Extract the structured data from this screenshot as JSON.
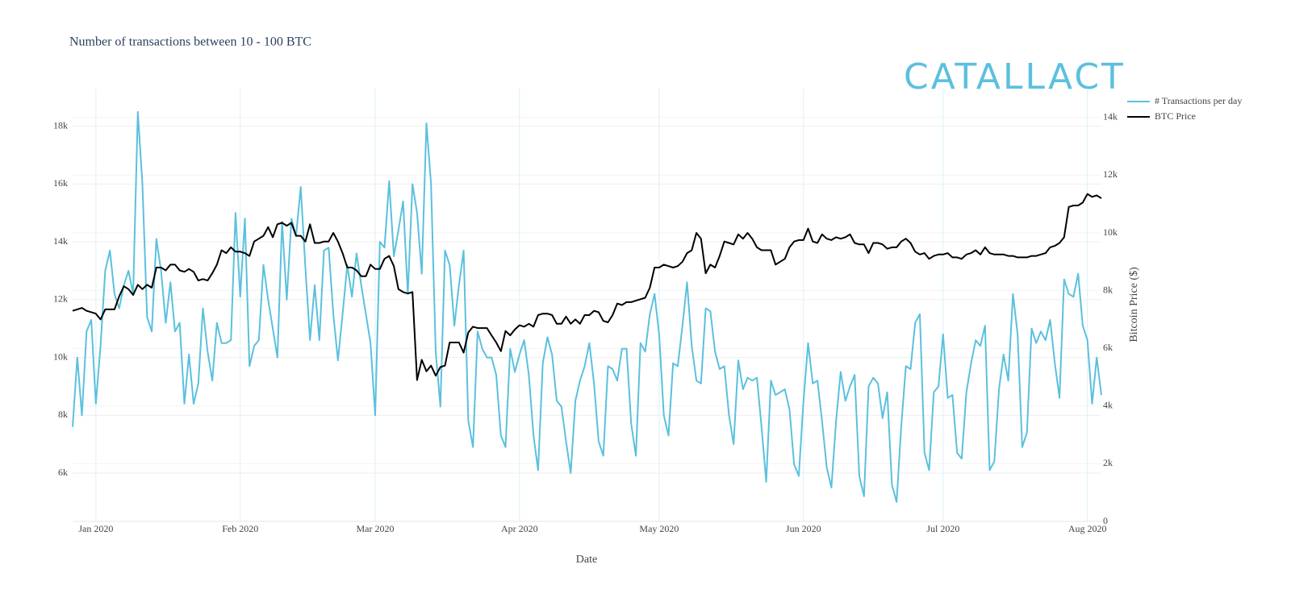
{
  "chart_data": {
    "type": "line",
    "title": "Number of transactions between 10 - 100 BTC",
    "logo": "CATALLACT",
    "xlabel": "Date",
    "y2label": "Bitcoin Price ($)",
    "categories": [
      null,
      null,
      null,
      null,
      null,
      "Jan 2020",
      null,
      null,
      null,
      null,
      null,
      null,
      null,
      null,
      null,
      null,
      null,
      null,
      null,
      null,
      null,
      null,
      null,
      null,
      null,
      null,
      null,
      null,
      null,
      null,
      null,
      null,
      null,
      null,
      null,
      null,
      "Feb 2020",
      null,
      null,
      null,
      null,
      null,
      null,
      null,
      null,
      null,
      null,
      null,
      null,
      null,
      null,
      null,
      null,
      null,
      null,
      null,
      null,
      null,
      null,
      null,
      null,
      null,
      null,
      null,
      null,
      "Mar 2020",
      null,
      null,
      null,
      null,
      null,
      null,
      null,
      null,
      null,
      null,
      null,
      null,
      null,
      null,
      null,
      null,
      null,
      null,
      null,
      null,
      null,
      null,
      null,
      null,
      null,
      null,
      null,
      null,
      null,
      null,
      "Apr 2020",
      null,
      null,
      null,
      null,
      null,
      null,
      null,
      null,
      null,
      null,
      null,
      null,
      null,
      null,
      null,
      null,
      null,
      null,
      null,
      null,
      null,
      null,
      null,
      null,
      null,
      null,
      null,
      null,
      null,
      "May 2020",
      null,
      null,
      null,
      null,
      null,
      null,
      null,
      null,
      null,
      null,
      null,
      null,
      null,
      null,
      null,
      null,
      null,
      null,
      null,
      null,
      null,
      null,
      null,
      null,
      null,
      null,
      null,
      null,
      null,
      null,
      "Jun 2020",
      null,
      null,
      null,
      null,
      null,
      null,
      null,
      null,
      null,
      null,
      null,
      null,
      null,
      null,
      null,
      null,
      null,
      null,
      null,
      null,
      null,
      null,
      null,
      null,
      null,
      null,
      null,
      null,
      null,
      "Jul 2020",
      null,
      null,
      null,
      null,
      null,
      null,
      null,
      null,
      null,
      null,
      null,
      null,
      null,
      null,
      null,
      null,
      null,
      null,
      null,
      null,
      null,
      null,
      null,
      null,
      null,
      null,
      null,
      null,
      null,
      null,
      "Aug 2020",
      null,
      null,
      null
    ],
    "series": [
      {
        "name": "# Transactions per day",
        "color": "#5bc0de",
        "axis": "y",
        "values": [
          7600,
          10000,
          8000,
          10900,
          11300,
          8400,
          10400,
          13000,
          13700,
          12200,
          11700,
          12500,
          13000,
          12200,
          18500,
          16000,
          11400,
          10900,
          14100,
          13000,
          11200,
          12600,
          10900,
          11200,
          8400,
          10100,
          8400,
          9100,
          11700,
          10200,
          9200,
          11200,
          10500,
          10500,
          10600,
          15000,
          12100,
          14800,
          9700,
          10400,
          10600,
          13200,
          12000,
          11000,
          10000,
          14700,
          12000,
          14800,
          14200,
          15900,
          13100,
          10600,
          12500,
          10600,
          13700,
          13800,
          11500,
          9900,
          11500,
          13200,
          12100,
          13600,
          12500,
          11500,
          10500,
          8000,
          14000,
          13800,
          16100,
          13500,
          14400,
          15400,
          12200,
          16000,
          15000,
          12900,
          18100,
          16000,
          10200,
          8300,
          13700,
          13200,
          11100,
          12500,
          13700,
          7800,
          6900,
          10900,
          10300,
          10000,
          10000,
          9400,
          7300,
          6900,
          10300,
          9500,
          10100,
          10600,
          9400,
          7300,
          6100,
          9800,
          10700,
          10100,
          8500,
          8300,
          7100,
          6000,
          8500,
          9200,
          9700,
          10500,
          9100,
          7100,
          6600,
          9700,
          9600,
          9200,
          10300,
          10300,
          7700,
          6600,
          10500,
          10200,
          11500,
          12200,
          10800,
          8000,
          7300,
          9800,
          9700,
          11100,
          12600,
          10400,
          9200,
          9100,
          11700,
          11600,
          10200,
          9600,
          9700,
          8000,
          7000,
          9900,
          8900,
          9300,
          9200,
          9300,
          7600,
          5700,
          9200,
          8700,
          8800,
          8900,
          8200,
          6300,
          5900,
          8500,
          10500,
          9100,
          9200,
          7800,
          6200,
          5500,
          7800,
          9500,
          8500,
          9000,
          9400,
          5900,
          5200,
          9000,
          9300,
          9100,
          7900,
          8800,
          5600,
          5000,
          7600,
          9700,
          9600,
          11200,
          11500,
          6700,
          6100,
          8800,
          9000,
          10800,
          8600,
          8700,
          6700,
          6500,
          8800,
          9800,
          10600,
          10400,
          11100,
          6100,
          6400,
          8900,
          10100,
          9200,
          12200,
          10800,
          6900,
          7400,
          11000,
          10500,
          10900,
          10600,
          11300,
          9800,
          8600,
          12700,
          12200,
          12100,
          12900,
          11100,
          10600,
          8400,
          10000,
          8700
        ]
      },
      {
        "name": "BTC Price",
        "color": "#000000",
        "axis": "y2",
        "values": [
          7300,
          7350,
          7400,
          7300,
          7250,
          7200,
          7000,
          7350,
          7350,
          7350,
          7800,
          8150,
          8050,
          7850,
          8200,
          8050,
          8200,
          8100,
          8800,
          8800,
          8700,
          8900,
          8900,
          8700,
          8650,
          8750,
          8650,
          8350,
          8400,
          8350,
          8600,
          8900,
          9400,
          9300,
          9500,
          9350,
          9350,
          9300,
          9200,
          9700,
          9800,
          9900,
          10200,
          9850,
          10300,
          10350,
          10250,
          10350,
          9900,
          9900,
          9700,
          10300,
          9650,
          9650,
          9700,
          9700,
          10000,
          9700,
          9300,
          8800,
          8800,
          8700,
          8500,
          8500,
          8900,
          8750,
          8750,
          9100,
          9200,
          8850,
          8050,
          7950,
          7900,
          7950,
          4900,
          5600,
          5200,
          5400,
          5050,
          5350,
          5400,
          6200,
          6200,
          6200,
          5850,
          6550,
          6750,
          6700,
          6700,
          6700,
          6450,
          6200,
          5900,
          6600,
          6450,
          6650,
          6800,
          6750,
          6850,
          6750,
          7150,
          7200,
          7200,
          7150,
          6850,
          6850,
          7100,
          6850,
          7000,
          6850,
          7150,
          7150,
          7300,
          7250,
          6950,
          6900,
          7150,
          7550,
          7500,
          7600,
          7600,
          7650,
          7700,
          7750,
          8100,
          8800,
          8800,
          8900,
          8850,
          8800,
          8850,
          9000,
          9300,
          9400,
          10000,
          9800,
          8600,
          8900,
          8800,
          9200,
          9700,
          9650,
          9600,
          9950,
          9800,
          10000,
          9800,
          9500,
          9400,
          9400,
          9400,
          8900,
          9000,
          9100,
          9500,
          9700,
          9750,
          9750,
          10150,
          9700,
          9650,
          9950,
          9800,
          9750,
          9850,
          9800,
          9850,
          9950,
          9650,
          9600,
          9600,
          9300,
          9650,
          9650,
          9600,
          9450,
          9500,
          9500,
          9700,
          9800,
          9650,
          9350,
          9250,
          9300,
          9100,
          9200,
          9250,
          9250,
          9300,
          9150,
          9150,
          9100,
          9250,
          9300,
          9400,
          9250,
          9500,
          9300,
          9250,
          9250,
          9250,
          9200,
          9200,
          9150,
          9150,
          9150,
          9200,
          9200,
          9250,
          9300,
          9500,
          9550,
          9650,
          9850,
          10900,
          10950,
          10950,
          11050,
          11350,
          11250,
          11300,
          11200
        ]
      }
    ],
    "ylim": [
      4330,
      19300
    ],
    "yticks": [
      {
        "value": 6000,
        "label": "6k"
      },
      {
        "value": 8000,
        "label": "8k"
      },
      {
        "value": 10000,
        "label": "10k"
      },
      {
        "value": 12000,
        "label": "12k"
      },
      {
        "value": 14000,
        "label": "14k"
      },
      {
        "value": 16000,
        "label": "16k"
      },
      {
        "value": 18000,
        "label": "18k"
      }
    ],
    "y2lim": [
      0,
      15000
    ],
    "y2ticks": [
      0,
      {
        "value": 2000,
        "label": "2k"
      },
      {
        "value": 4000,
        "label": "4k"
      },
      {
        "value": 6000,
        "label": "6k"
      },
      {
        "value": 8000,
        "label": "8k"
      },
      {
        "value": 10000,
        "label": "10k"
      },
      {
        "value": 12000,
        "label": "12k"
      },
      {
        "value": 14000,
        "label": "14k"
      }
    ],
    "grid": true,
    "legend": "upper right"
  }
}
